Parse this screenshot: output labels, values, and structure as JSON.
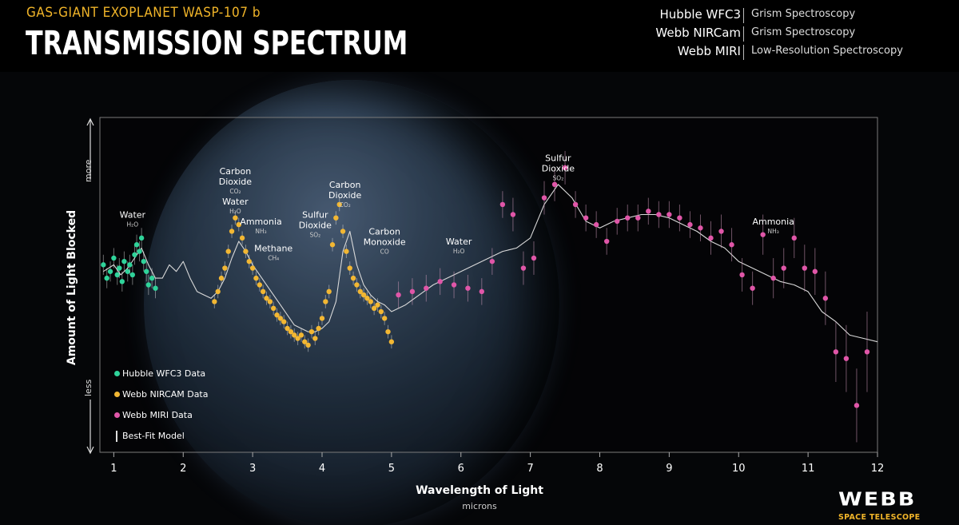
{
  "header": {
    "subtitle": "GAS-GIANT EXOPLANET WASP-107 b",
    "title": "TRANSMISSION SPECTRUM",
    "instruments": [
      {
        "name": "Hubble WFC3",
        "method": "Grism Spectroscopy"
      },
      {
        "name": "Webb NIRCam",
        "method": "Grism Spectroscopy"
      },
      {
        "name": "Webb MIRI",
        "method": "Low-Resolution Spectroscopy"
      }
    ]
  },
  "logo": {
    "name": "WEBB",
    "subtext": "SPACE TELESCOPE"
  },
  "colors": {
    "accent": "#f0b429",
    "hubble": "#2fd39a",
    "nircam": "#f2b733",
    "miri": "#e056a8",
    "model": "#d9d9d9"
  },
  "chart_data": {
    "type": "scatter",
    "xlabel": "Wavelength of Light",
    "xunit": "microns",
    "ylabel": "Amount of Light Blocked",
    "y_more_label": "more",
    "y_less_label": "less",
    "xlim": [
      0.8,
      12
    ],
    "ylim": [
      0,
      100
    ],
    "x_ticks": [
      1,
      2,
      3,
      4,
      5,
      6,
      7,
      8,
      9,
      10,
      11,
      12
    ],
    "grid": false,
    "legend_position": "bottom-left",
    "legend": [
      {
        "label": "Hubble WFC3 Data",
        "series": "hubble"
      },
      {
        "label": "Webb NIRCAM Data",
        "series": "nircam"
      },
      {
        "label": "Webb MIRI Data",
        "series": "miri"
      },
      {
        "label": "Best-Fit Model",
        "series": "model"
      }
    ],
    "annotations": [
      {
        "lines": [
          "Water"
        ],
        "formula": "H₂O",
        "x": 1.27,
        "y": 70
      },
      {
        "lines": [
          "Carbon",
          "Dioxide"
        ],
        "formula": "CO₂",
        "x": 2.75,
        "y": 83
      },
      {
        "lines": [
          "Water"
        ],
        "formula": "H₂O",
        "x": 2.75,
        "y": 74
      },
      {
        "lines": [
          "Ammonia"
        ],
        "formula": "NH₃",
        "x": 3.12,
        "y": 68
      },
      {
        "lines": [
          "Methane"
        ],
        "formula": "CH₄",
        "x": 3.3,
        "y": 60
      },
      {
        "lines": [
          "Sulfur",
          "Dioxide"
        ],
        "formula": "SO₂",
        "x": 3.9,
        "y": 70
      },
      {
        "lines": [
          "Carbon",
          "Dioxide"
        ],
        "formula": "CO₂",
        "x": 4.33,
        "y": 79
      },
      {
        "lines": [
          "Carbon",
          "Monoxide"
        ],
        "formula": "CO",
        "x": 4.9,
        "y": 65
      },
      {
        "lines": [
          "Water"
        ],
        "formula": "H₂O",
        "x": 5.97,
        "y": 62
      },
      {
        "lines": [
          "Sulfur",
          "Dioxide"
        ],
        "formula": "SO₂",
        "x": 7.4,
        "y": 87
      },
      {
        "lines": [
          "Ammonia"
        ],
        "formula": "NH₃",
        "x": 10.5,
        "y": 68
      }
    ],
    "series": [
      {
        "name": "Hubble WFC3 Data",
        "key": "hubble",
        "x": [
          0.85,
          0.9,
          0.95,
          1.0,
          1.05,
          1.08,
          1.12,
          1.15,
          1.2,
          1.23,
          1.27,
          1.3,
          1.33,
          1.37,
          1.4,
          1.43,
          1.47,
          1.5,
          1.55,
          1.6
        ],
        "y": [
          56,
          52,
          54,
          58,
          53,
          55,
          51,
          57,
          54,
          56,
          53,
          59,
          62,
          60,
          64,
          57,
          54,
          50,
          52,
          49
        ],
        "err": [
          3,
          3,
          3,
          3,
          3,
          3,
          3,
          3,
          3,
          3,
          3,
          3,
          3,
          3,
          3,
          3,
          3,
          3,
          3,
          3
        ]
      },
      {
        "name": "Webb NIRCAM Data",
        "key": "nircam",
        "x": [
          2.45,
          2.5,
          2.55,
          2.6,
          2.65,
          2.7,
          2.75,
          2.8,
          2.85,
          2.9,
          2.95,
          3.0,
          3.05,
          3.1,
          3.15,
          3.2,
          3.25,
          3.3,
          3.35,
          3.4,
          3.45,
          3.5,
          3.55,
          3.6,
          3.65,
          3.7,
          3.75,
          3.8,
          3.85,
          3.9,
          3.95,
          4.0,
          4.05,
          4.1,
          4.15,
          4.2,
          4.25,
          4.3,
          4.35,
          4.4,
          4.45,
          4.5,
          4.55,
          4.6,
          4.65,
          4.7,
          4.75,
          4.8,
          4.85,
          4.9,
          4.95,
          5.0
        ],
        "y": [
          45,
          48,
          52,
          55,
          60,
          66,
          70,
          68,
          64,
          60,
          57,
          55,
          52,
          50,
          48,
          46,
          45,
          43,
          41,
          40,
          39,
          37,
          36,
          35,
          34,
          35,
          33,
          32,
          36,
          34,
          37,
          40,
          45,
          48,
          62,
          70,
          74,
          66,
          60,
          55,
          52,
          50,
          48,
          47,
          46,
          45,
          43,
          44,
          42,
          40,
          36,
          33
        ],
        "err": [
          2,
          2,
          2,
          2,
          2,
          2,
          2,
          2,
          2,
          2,
          2,
          2,
          2,
          2,
          2,
          2,
          2,
          2,
          2,
          2,
          2,
          2,
          2,
          2,
          2,
          2,
          2,
          2,
          2,
          2,
          2,
          2,
          2,
          2,
          2,
          2,
          2,
          2,
          2,
          2,
          2,
          2,
          2,
          2,
          2,
          2,
          2,
          2,
          2,
          2,
          2,
          2
        ]
      },
      {
        "name": "Webb MIRI Data",
        "key": "miri",
        "x": [
          5.1,
          5.3,
          5.5,
          5.7,
          5.9,
          6.1,
          6.3,
          6.45,
          6.6,
          6.75,
          6.9,
          7.05,
          7.2,
          7.35,
          7.5,
          7.65,
          7.8,
          7.95,
          8.1,
          8.25,
          8.4,
          8.55,
          8.7,
          8.85,
          9.0,
          9.15,
          9.3,
          9.45,
          9.6,
          9.75,
          9.9,
          10.05,
          10.2,
          10.35,
          10.5,
          10.65,
          10.8,
          10.95,
          11.1,
          11.25,
          11.4,
          11.55,
          11.7,
          11.85
        ],
        "y": [
          47,
          48,
          49,
          51,
          50,
          49,
          48,
          57,
          74,
          71,
          55,
          58,
          76,
          80,
          85,
          74,
          70,
          68,
          63,
          69,
          70,
          70,
          72,
          71,
          71,
          70,
          68,
          67,
          64,
          66,
          62,
          53,
          49,
          65,
          52,
          55,
          64,
          55,
          54,
          46,
          30,
          28,
          14,
          30
        ],
        "err": [
          4,
          4,
          4,
          4,
          4,
          4,
          4,
          4,
          4,
          5,
          5,
          5,
          5,
          5,
          5,
          4,
          4,
          4,
          4,
          4,
          4,
          4,
          4,
          4,
          4,
          4,
          4,
          4,
          5,
          5,
          5,
          5,
          5,
          6,
          6,
          6,
          6,
          7,
          7,
          8,
          9,
          10,
          11,
          12
        ]
      },
      {
        "name": "Best-Fit Model",
        "key": "model",
        "x": [
          0.85,
          1.0,
          1.1,
          1.2,
          1.3,
          1.4,
          1.5,
          1.6,
          1.7,
          1.8,
          1.9,
          2.0,
          2.1,
          2.2,
          2.3,
          2.4,
          2.5,
          2.6,
          2.7,
          2.8,
          2.9,
          3.0,
          3.1,
          3.2,
          3.3,
          3.4,
          3.5,
          3.6,
          3.7,
          3.8,
          3.9,
          4.0,
          4.1,
          4.2,
          4.3,
          4.4,
          4.5,
          4.6,
          4.7,
          4.8,
          4.9,
          5.0,
          5.2,
          5.4,
          5.6,
          5.8,
          6.0,
          6.2,
          6.4,
          6.6,
          6.8,
          7.0,
          7.2,
          7.4,
          7.6,
          7.8,
          8.0,
          8.2,
          8.4,
          8.6,
          8.8,
          9.0,
          9.2,
          9.4,
          9.6,
          9.8,
          10.0,
          10.2,
          10.4,
          10.6,
          10.8,
          11.0,
          11.2,
          11.4,
          11.6,
          11.8,
          12.0
        ],
        "y": [
          54,
          56,
          53,
          55,
          58,
          61,
          56,
          52,
          52,
          56,
          54,
          57,
          52,
          48,
          47,
          46,
          48,
          52,
          58,
          63,
          60,
          56,
          53,
          50,
          47,
          44,
          41,
          38,
          37,
          36,
          36,
          37,
          39,
          45,
          60,
          66,
          56,
          50,
          47,
          45,
          44,
          42,
          44,
          47,
          50,
          52,
          54,
          56,
          58,
          60,
          61,
          64,
          74,
          80,
          76,
          69,
          67,
          69,
          70,
          71,
          71,
          70,
          68,
          66,
          63,
          61,
          57,
          55,
          53,
          51,
          50,
          48,
          42,
          39,
          35,
          34,
          33
        ]
      }
    ]
  }
}
